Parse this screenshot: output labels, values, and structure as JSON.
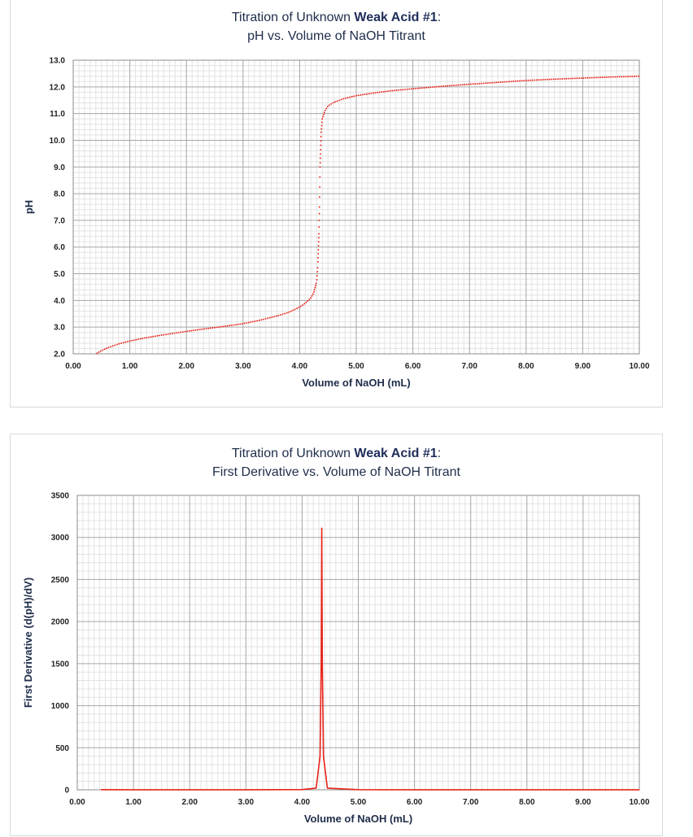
{
  "charts": [
    {
      "title_line1_prefix": "Titration of Unknown ",
      "title_line1_bold": "Weak Acid #1",
      "title_line1_suffix": ":",
      "title_line2": "pH vs. Volume of NaOH Titrant",
      "xlabel": "Volume of NaOH (mL)",
      "ylabel": "pH"
    },
    {
      "title_line1_prefix": "Titration of Unknown ",
      "title_line1_bold": "Weak Acid #1",
      "title_line1_suffix": ":",
      "title_line2": "First Derivative vs. Volume of NaOH Titrant",
      "xlabel": "Volume of NaOH (mL)",
      "ylabel": "First Derivative (d(pH)/dV)"
    }
  ],
  "colors": {
    "series": "#e8231a",
    "grid_major": "#a6a6a6",
    "grid_minor": "#e3e3e3",
    "title": "#1f2d4a"
  },
  "chart_data": [
    {
      "type": "scatter",
      "title": "Titration of Unknown Weak Acid #1: pH vs. Volume of NaOH Titrant",
      "xlabel": "Volume of NaOH (mL)",
      "ylabel": "pH",
      "xlim": [
        0,
        10
      ],
      "ylim": [
        2,
        13
      ],
      "x_ticks": [
        "0.00",
        "1.00",
        "2.00",
        "3.00",
        "4.00",
        "5.00",
        "6.00",
        "7.00",
        "8.00",
        "9.00",
        "10.00"
      ],
      "y_ticks": [
        "2.0",
        "3.0",
        "4.0",
        "5.0",
        "6.0",
        "7.0",
        "8.0",
        "9.0",
        "10.0",
        "11.0",
        "12.0",
        "13.0"
      ],
      "grid": true,
      "series": [
        {
          "x": [
            0.42,
            0.5,
            0.6,
            0.8,
            1.0,
            1.2,
            1.5,
            1.8,
            2.0,
            2.3,
            2.6,
            2.9,
            3.0,
            3.3,
            3.6,
            3.8,
            4.0,
            4.1,
            4.2,
            4.25,
            4.3,
            4.32,
            4.34,
            4.35,
            4.36,
            4.38,
            4.4,
            4.45,
            4.5,
            4.6,
            4.8,
            5.0,
            5.3,
            5.6,
            6.0,
            6.5,
            7.0,
            7.5,
            8.0,
            8.5,
            9.0,
            9.5,
            10.0
          ],
          "y": [
            2.02,
            2.12,
            2.22,
            2.37,
            2.48,
            2.57,
            2.68,
            2.78,
            2.84,
            2.93,
            3.01,
            3.1,
            3.13,
            3.26,
            3.42,
            3.55,
            3.75,
            3.9,
            4.1,
            4.3,
            4.7,
            5.3,
            6.5,
            7.5,
            9.0,
            10.3,
            10.8,
            11.12,
            11.28,
            11.42,
            11.57,
            11.67,
            11.77,
            11.85,
            11.93,
            12.02,
            12.1,
            12.17,
            12.24,
            12.29,
            12.33,
            12.37,
            12.4
          ]
        }
      ]
    },
    {
      "type": "line",
      "title": "Titration of Unknown Weak Acid #1: First Derivative vs. Volume of NaOH Titrant",
      "xlabel": "Volume of NaOH (mL)",
      "ylabel": "First Derivative (d(pH)/dV)",
      "xlim": [
        0,
        10
      ],
      "ylim": [
        0,
        3500
      ],
      "x_ticks": [
        "0.00",
        "1.00",
        "2.00",
        "3.00",
        "4.00",
        "5.00",
        "6.00",
        "7.00",
        "8.00",
        "9.00",
        "10.00"
      ],
      "y_ticks": [
        "0",
        "500",
        "1000",
        "1500",
        "2000",
        "2500",
        "3000",
        "3500"
      ],
      "grid": true,
      "series": [
        {
          "x": [
            0.42,
            1.0,
            2.0,
            3.0,
            4.0,
            4.25,
            4.32,
            4.34,
            4.35,
            4.36,
            4.38,
            4.45,
            5.0,
            6.0,
            7.0,
            8.0,
            9.0,
            10.0
          ],
          "y": [
            2,
            1,
            1,
            1,
            3,
            20,
            400,
            1500,
            3110,
            1500,
            400,
            20,
            2,
            1,
            1,
            1,
            1,
            1
          ]
        }
      ]
    }
  ]
}
